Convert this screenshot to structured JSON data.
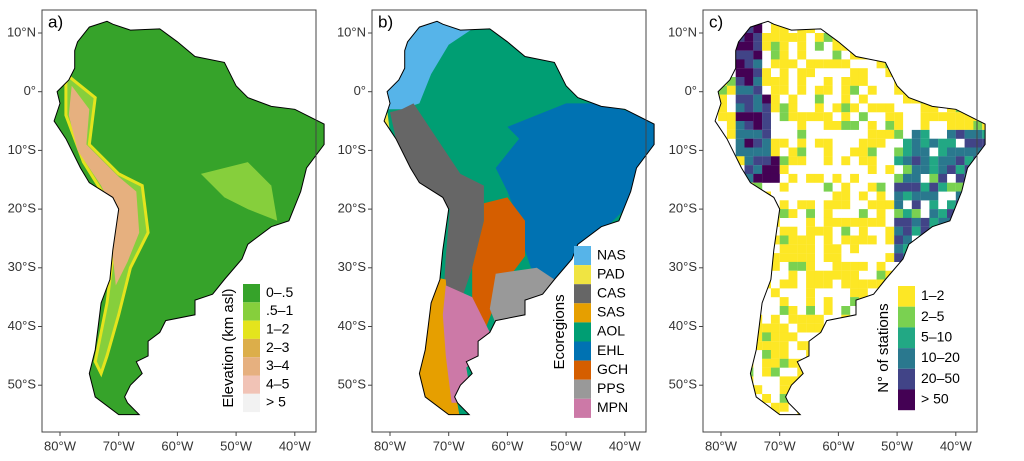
{
  "axes": {
    "x_labels": [
      "80°W",
      "70°W",
      "60°W",
      "50°W",
      "40°W"
    ],
    "y_labels": [
      "10°N",
      "0°",
      "10°S",
      "20°S",
      "30°S",
      "40°S",
      "50°S"
    ]
  },
  "panels": [
    {
      "label": "a)",
      "legend": {
        "title": "Elevation (km asl)",
        "items": [
          {
            "label": "0–.5",
            "color": "#36a32a"
          },
          {
            "label": ".5–1",
            "color": "#86cf3c"
          },
          {
            "label": "1–2",
            "color": "#e4e41d"
          },
          {
            "label": "2–3",
            "color": "#dcae4a"
          },
          {
            "label": "3–4",
            "color": "#e6b07f"
          },
          {
            "label": "4–5",
            "color": "#f1c3b6"
          },
          {
            "label": "> 5",
            "color": "#f2f2f2"
          }
        ]
      }
    },
    {
      "label": "b)",
      "legend": {
        "title": "Ecoregions",
        "items": [
          {
            "label": "NAS",
            "color": "#56b4e9"
          },
          {
            "label": "PAD",
            "color": "#f0e442"
          },
          {
            "label": "CAS",
            "color": "#666666"
          },
          {
            "label": "SAS",
            "color": "#e69f00"
          },
          {
            "label": "AOL",
            "color": "#009e73"
          },
          {
            "label": "EHL",
            "color": "#0072b2"
          },
          {
            "label": "GCH",
            "color": "#d55e00"
          },
          {
            "label": "PPS",
            "color": "#999999"
          },
          {
            "label": "MPN",
            "color": "#cc79a7"
          }
        ]
      }
    },
    {
      "label": "c)",
      "legend": {
        "title": "N° of stations",
        "items": [
          {
            "label": "1–2",
            "color": "#fde725"
          },
          {
            "label": "2–5",
            "color": "#7ad151"
          },
          {
            "label": "5–10",
            "color": "#22a884"
          },
          {
            "label": "10–20",
            "color": "#2a788e"
          },
          {
            "label": "20–50",
            "color": "#414487"
          },
          {
            "label": "> 50",
            "color": "#440154"
          }
        ]
      }
    }
  ]
}
